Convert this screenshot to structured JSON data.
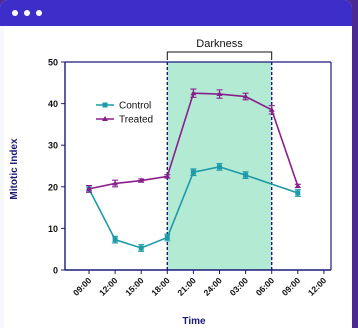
{
  "window": {
    "controls": [
      "dot",
      "dot",
      "dot"
    ]
  },
  "colors": {
    "titlebar": "#3d2ec9",
    "background": "#4b2a92",
    "control": "#1e9aa8",
    "treated": "#8a1f8c",
    "darkness_fill": "#b3ead4",
    "axis": "#1a1a7a"
  },
  "chart_data": {
    "type": "line",
    "title": "",
    "xlabel": "Time",
    "ylabel": "Mitotic Index",
    "ylim": [
      0,
      50
    ],
    "yticks": [
      0,
      10,
      20,
      30,
      40,
      50
    ],
    "categories": [
      "09:00",
      "12:00",
      "15:00",
      "18:00",
      "21:00",
      "24:00",
      "03:00",
      "06:00",
      "09:00",
      "12:00"
    ],
    "annotation": {
      "label": "Darkness",
      "from_index": 3,
      "to_index": 7
    },
    "legend": "left",
    "series": [
      {
        "name": "Control",
        "values": [
          19.5,
          7.3,
          5.3,
          7.8,
          23.5,
          24.8,
          22.8,
          null,
          18.5,
          null
        ],
        "error": [
          0.8,
          0.8,
          0.8,
          0.8,
          0.8,
          0.8,
          0.8,
          null,
          0.8,
          null
        ]
      },
      {
        "name": "Treated",
        "values": [
          19.5,
          20.8,
          21.5,
          22.5,
          42.5,
          42.3,
          41.7,
          38.5,
          20.2,
          null
        ],
        "error": [
          0.8,
          0.8,
          0.4,
          0.4,
          1.0,
          1.0,
          0.8,
          1.0,
          0.4,
          null
        ]
      }
    ]
  }
}
